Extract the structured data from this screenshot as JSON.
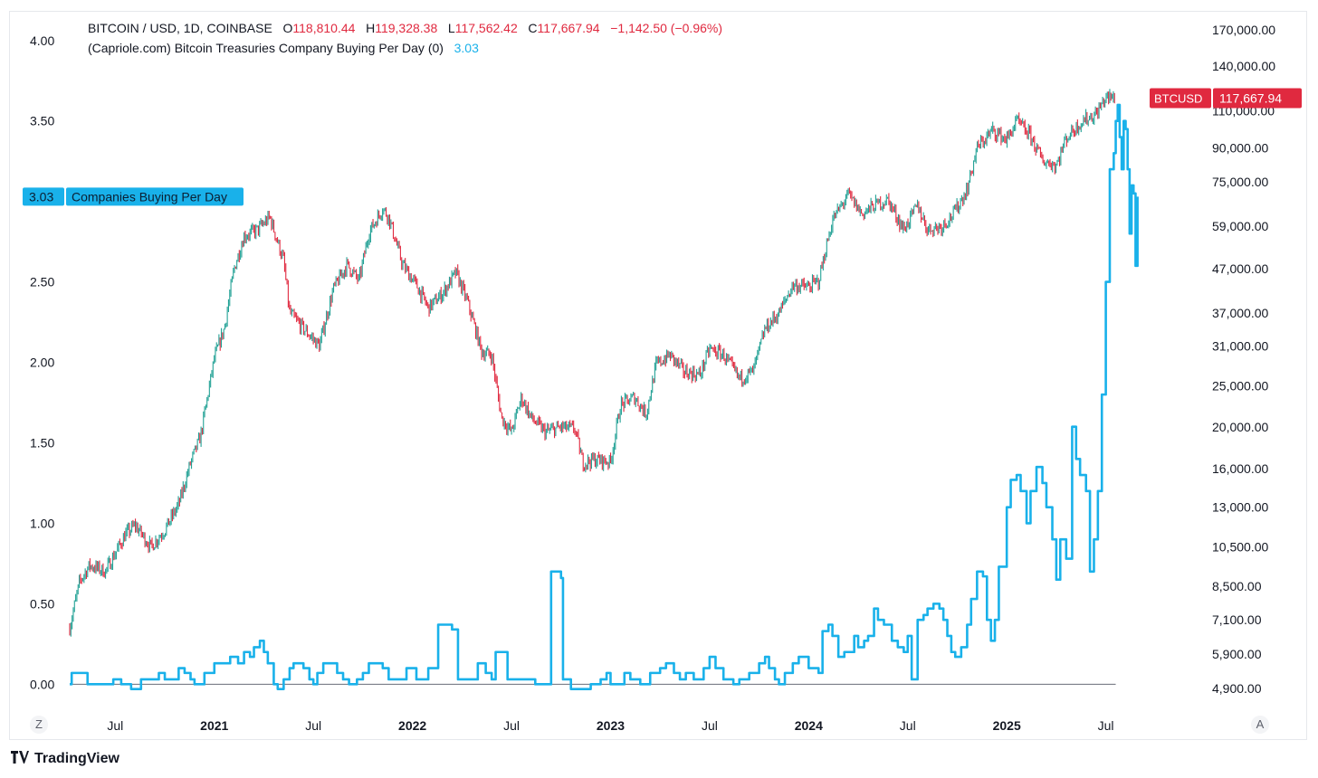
{
  "header": {
    "symbol_line": "BITCOIN / USD, 1D, COINBASE",
    "o_label": "O",
    "o_value": "118,810.44",
    "h_label": "H",
    "h_value": "119,328.38",
    "l_label": "L",
    "l_value": "117,562.42",
    "c_label": "C",
    "c_value": "117,667.94",
    "change": "−1,142.50 (−0.96%)",
    "indicator_line": "(Capriole.com) Bitcoin Treasuries Company Buying Per Day (0)",
    "indicator_value": "3.03"
  },
  "colors": {
    "price_up": "#22a195",
    "price_down": "#e0293f",
    "indicator": "#19b1ea",
    "badge_red": "#e0293f",
    "text": "#131722",
    "zero_line": "#6a6d78"
  },
  "badges": {
    "price_symbol": "BTCUSD",
    "price_value": "117,667.94",
    "indicator_value": "3.03",
    "indicator_label": "Companies Buying Per Day"
  },
  "footer": {
    "logo_text": "TradingView",
    "logo_icon": "tradingview-logo-icon",
    "left_button": "Z",
    "right_button": "A"
  },
  "chart_data": [
    {
      "type": "line",
      "name": "BTCUSD daily price",
      "title": "BITCOIN / USD, 1D, COINBASE",
      "yscale": "log",
      "ylabel": "USD",
      "ylim": [
        4400,
        175000
      ],
      "y_ticks": [
        "170,000.00",
        "140,000.00",
        "110,000.00",
        "90,000.00",
        "75,000.00",
        "59,000.00",
        "47,000.00",
        "37,000.00",
        "31,000.00",
        "25,000.00",
        "20,000.00",
        "16,000.00",
        "13,000.00",
        "10,500.00",
        "8,500.00",
        "7,100.00",
        "5,900.00",
        "4,900.00"
      ],
      "x_range": [
        2020.27,
        2025.55
      ],
      "x_ticks": [
        {
          "label": "Jul",
          "t": 2020.5,
          "bold": false
        },
        {
          "label": "2021",
          "t": 2021.0,
          "bold": true
        },
        {
          "label": "Jul",
          "t": 2021.5,
          "bold": false
        },
        {
          "label": "2022",
          "t": 2022.0,
          "bold": true
        },
        {
          "label": "Jul",
          "t": 2022.5,
          "bold": false
        },
        {
          "label": "2023",
          "t": 2023.0,
          "bold": true
        },
        {
          "label": "Jul",
          "t": 2023.5,
          "bold": false
        },
        {
          "label": "2024",
          "t": 2024.0,
          "bold": true
        },
        {
          "label": "Jul",
          "t": 2024.5,
          "bold": false
        },
        {
          "label": "2025",
          "t": 2025.0,
          "bold": true
        },
        {
          "label": "Jul",
          "t": 2025.5,
          "bold": false
        }
      ],
      "points": [
        [
          2020.27,
          6800
        ],
        [
          2020.32,
          8700
        ],
        [
          2020.37,
          9500
        ],
        [
          2020.45,
          9200
        ],
        [
          2020.55,
          11200
        ],
        [
          2020.6,
          11800
        ],
        [
          2020.68,
          10500
        ],
        [
          2020.75,
          11500
        ],
        [
          2020.82,
          13200
        ],
        [
          2020.88,
          16500
        ],
        [
          2020.93,
          19000
        ],
        [
          2021.0,
          29000
        ],
        [
          2021.05,
          34000
        ],
        [
          2021.1,
          47000
        ],
        [
          2021.15,
          56000
        ],
        [
          2021.22,
          58000
        ],
        [
          2021.28,
          62000
        ],
        [
          2021.35,
          49000
        ],
        [
          2021.38,
          37000
        ],
        [
          2021.45,
          34000
        ],
        [
          2021.53,
          31000
        ],
        [
          2021.6,
          42000
        ],
        [
          2021.67,
          48000
        ],
        [
          2021.73,
          44000
        ],
        [
          2021.78,
          57000
        ],
        [
          2021.85,
          65000
        ],
        [
          2021.88,
          62000
        ],
        [
          2021.95,
          48000
        ],
        [
          2022.02,
          43000
        ],
        [
          2022.08,
          38000
        ],
        [
          2022.15,
          41000
        ],
        [
          2022.22,
          46000
        ],
        [
          2022.28,
          39000
        ],
        [
          2022.35,
          30000
        ],
        [
          2022.4,
          29500
        ],
        [
          2022.45,
          21000
        ],
        [
          2022.5,
          19500
        ],
        [
          2022.55,
          23500
        ],
        [
          2022.6,
          21000
        ],
        [
          2022.67,
          19500
        ],
        [
          2022.75,
          20000
        ],
        [
          2022.82,
          19800
        ],
        [
          2022.86,
          16500
        ],
        [
          2022.92,
          16800
        ],
        [
          2023.0,
          16600
        ],
        [
          2023.05,
          22500
        ],
        [
          2023.12,
          23500
        ],
        [
          2023.18,
          21500
        ],
        [
          2023.23,
          28000
        ],
        [
          2023.3,
          29500
        ],
        [
          2023.37,
          27000
        ],
        [
          2023.45,
          26500
        ],
        [
          2023.5,
          30500
        ],
        [
          2023.57,
          29500
        ],
        [
          2023.65,
          26000
        ],
        [
          2023.72,
          27000
        ],
        [
          2023.78,
          34000
        ],
        [
          2023.85,
          37000
        ],
        [
          2023.92,
          43000
        ],
        [
          2024.0,
          42500
        ],
        [
          2024.05,
          44000
        ],
        [
          2024.12,
          61000
        ],
        [
          2024.2,
          70000
        ],
        [
          2024.27,
          63000
        ],
        [
          2024.33,
          66000
        ],
        [
          2024.4,
          68000
        ],
        [
          2024.48,
          58000
        ],
        [
          2024.55,
          66000
        ],
        [
          2024.6,
          58000
        ],
        [
          2024.67,
          59000
        ],
        [
          2024.73,
          63000
        ],
        [
          2024.8,
          72000
        ],
        [
          2024.85,
          90000
        ],
        [
          2024.93,
          99000
        ],
        [
          2025.0,
          94000
        ],
        [
          2025.05,
          104000
        ],
        [
          2025.12,
          96000
        ],
        [
          2025.18,
          84000
        ],
        [
          2025.25,
          82000
        ],
        [
          2025.3,
          95000
        ],
        [
          2025.38,
          104000
        ],
        [
          2025.45,
          108000
        ],
        [
          2025.5,
          118000
        ],
        [
          2025.55,
          117667.94
        ]
      ]
    },
    {
      "type": "line",
      "name": "Companies Buying Per Day",
      "title": "(Capriole.com) Bitcoin Treasuries Company Buying Per Day (0)",
      "ylim": [
        -0.15,
        4.1
      ],
      "y_ticks": [
        "4.00",
        "3.50",
        "2.50",
        "2.00",
        "1.50",
        "1.00",
        "0.50",
        "0.00"
      ],
      "last_value": 3.03,
      "points": [
        [
          2020.27,
          0.0
        ],
        [
          2020.28,
          0.07
        ],
        [
          2020.35,
          0.07
        ],
        [
          2020.36,
          0.0
        ],
        [
          2020.48,
          0.0
        ],
        [
          2020.49,
          0.03
        ],
        [
          2020.52,
          0.03
        ],
        [
          2020.53,
          0.0
        ],
        [
          2020.57,
          0.0
        ],
        [
          2020.58,
          -0.03
        ],
        [
          2020.62,
          -0.03
        ],
        [
          2020.63,
          0.03
        ],
        [
          2020.7,
          0.03
        ],
        [
          2020.72,
          0.07
        ],
        [
          2020.75,
          0.03
        ],
        [
          2020.8,
          0.03
        ],
        [
          2020.82,
          0.1
        ],
        [
          2020.85,
          0.07
        ],
        [
          2020.88,
          0.03
        ],
        [
          2020.9,
          0.0
        ],
        [
          2020.95,
          0.07
        ],
        [
          2020.98,
          0.07
        ],
        [
          2021.0,
          0.13
        ],
        [
          2021.05,
          0.13
        ],
        [
          2021.08,
          0.17
        ],
        [
          2021.12,
          0.13
        ],
        [
          2021.15,
          0.2
        ],
        [
          2021.18,
          0.17
        ],
        [
          2021.2,
          0.23
        ],
        [
          2021.23,
          0.27
        ],
        [
          2021.25,
          0.2
        ],
        [
          2021.27,
          0.13
        ],
        [
          2021.3,
          0.0
        ],
        [
          2021.32,
          -0.03
        ],
        [
          2021.35,
          0.03
        ],
        [
          2021.38,
          0.1
        ],
        [
          2021.4,
          0.13
        ],
        [
          2021.45,
          0.1
        ],
        [
          2021.48,
          0.03
        ],
        [
          2021.5,
          0.0
        ],
        [
          2021.52,
          0.07
        ],
        [
          2021.55,
          0.13
        ],
        [
          2021.6,
          0.13
        ],
        [
          2021.62,
          0.07
        ],
        [
          2021.65,
          0.03
        ],
        [
          2021.68,
          0.0
        ],
        [
          2021.72,
          0.03
        ],
        [
          2021.75,
          0.07
        ],
        [
          2021.78,
          0.13
        ],
        [
          2021.82,
          0.13
        ],
        [
          2021.85,
          0.1
        ],
        [
          2021.88,
          0.03
        ],
        [
          2021.95,
          0.03
        ],
        [
          2021.97,
          0.1
        ],
        [
          2022.0,
          0.1
        ],
        [
          2022.02,
          0.03
        ],
        [
          2022.05,
          0.03
        ],
        [
          2022.08,
          0.1
        ],
        [
          2022.12,
          0.1
        ],
        [
          2022.13,
          0.37
        ],
        [
          2022.17,
          0.37
        ],
        [
          2022.2,
          0.34
        ],
        [
          2022.22,
          0.34
        ],
        [
          2022.23,
          0.03
        ],
        [
          2022.3,
          0.03
        ],
        [
          2022.33,
          0.13
        ],
        [
          2022.37,
          0.07
        ],
        [
          2022.4,
          0.03
        ],
        [
          2022.42,
          0.2
        ],
        [
          2022.47,
          0.2
        ],
        [
          2022.48,
          0.03
        ],
        [
          2022.55,
          0.03
        ],
        [
          2022.58,
          0.03
        ],
        [
          2022.6,
          0.03
        ],
        [
          2022.62,
          0.0
        ],
        [
          2022.65,
          0.0
        ],
        [
          2022.67,
          0.0
        ],
        [
          2022.7,
          0.7
        ],
        [
          2022.74,
          0.7
        ],
        [
          2022.75,
          0.66
        ],
        [
          2022.76,
          0.03
        ],
        [
          2022.79,
          0.03
        ],
        [
          2022.8,
          -0.03
        ],
        [
          2022.85,
          -0.03
        ],
        [
          2022.9,
          0.0
        ],
        [
          2022.95,
          0.03
        ],
        [
          2022.98,
          0.07
        ],
        [
          2023.0,
          0.0
        ],
        [
          2023.05,
          0.0
        ],
        [
          2023.07,
          0.07
        ],
        [
          2023.1,
          0.03
        ],
        [
          2023.15,
          0.0
        ],
        [
          2023.2,
          0.07
        ],
        [
          2023.25,
          0.1
        ],
        [
          2023.28,
          0.13
        ],
        [
          2023.32,
          0.07
        ],
        [
          2023.35,
          0.03
        ],
        [
          2023.38,
          0.07
        ],
        [
          2023.42,
          0.03
        ],
        [
          2023.45,
          0.03
        ],
        [
          2023.47,
          0.1
        ],
        [
          2023.5,
          0.17
        ],
        [
          2023.53,
          0.1
        ],
        [
          2023.57,
          0.03
        ],
        [
          2023.6,
          0.03
        ],
        [
          2023.62,
          0.0
        ],
        [
          2023.65,
          0.03
        ],
        [
          2023.7,
          0.07
        ],
        [
          2023.75,
          0.13
        ],
        [
          2023.78,
          0.17
        ],
        [
          2023.8,
          0.1
        ],
        [
          2023.83,
          0.03
        ],
        [
          2023.85,
          0.0
        ],
        [
          2023.88,
          0.07
        ],
        [
          2023.92,
          0.13
        ],
        [
          2023.95,
          0.17
        ],
        [
          2024.0,
          0.1
        ],
        [
          2024.05,
          0.07
        ],
        [
          2024.07,
          0.33
        ],
        [
          2024.1,
          0.37
        ],
        [
          2024.12,
          0.3
        ],
        [
          2024.15,
          0.17
        ],
        [
          2024.18,
          0.2
        ],
        [
          2024.2,
          0.2
        ],
        [
          2024.23,
          0.3
        ],
        [
          2024.25,
          0.23
        ],
        [
          2024.28,
          0.27
        ],
        [
          2024.3,
          0.3
        ],
        [
          2024.33,
          0.47
        ],
        [
          2024.35,
          0.4
        ],
        [
          2024.38,
          0.37
        ],
        [
          2024.42,
          0.27
        ],
        [
          2024.45,
          0.23
        ],
        [
          2024.48,
          0.2
        ],
        [
          2024.5,
          0.3
        ],
        [
          2024.52,
          0.03
        ],
        [
          2024.55,
          0.4
        ],
        [
          2024.58,
          0.43
        ],
        [
          2024.6,
          0.47
        ],
        [
          2024.63,
          0.5
        ],
        [
          2024.66,
          0.47
        ],
        [
          2024.68,
          0.4
        ],
        [
          2024.7,
          0.3
        ],
        [
          2024.72,
          0.2
        ],
        [
          2024.74,
          0.17
        ],
        [
          2024.77,
          0.23
        ],
        [
          2024.8,
          0.37
        ],
        [
          2024.82,
          0.53
        ],
        [
          2024.85,
          0.7
        ],
        [
          2024.88,
          0.67
        ],
        [
          2024.9,
          0.4
        ],
        [
          2024.92,
          0.27
        ],
        [
          2024.94,
          0.4
        ],
        [
          2024.96,
          0.73
        ],
        [
          2024.98,
          0.73
        ],
        [
          2025.0,
          1.1
        ],
        [
          2025.02,
          1.27
        ],
        [
          2025.05,
          1.3
        ],
        [
          2025.07,
          1.2
        ],
        [
          2025.1,
          1.0
        ],
        [
          2025.12,
          1.2
        ],
        [
          2025.15,
          1.35
        ],
        [
          2025.18,
          1.25
        ],
        [
          2025.2,
          1.1
        ],
        [
          2025.23,
          0.9
        ],
        [
          2025.25,
          0.65
        ],
        [
          2025.27,
          0.9
        ],
        [
          2025.3,
          0.78
        ],
        [
          2025.33,
          1.6
        ],
        [
          2025.35,
          1.4
        ],
        [
          2025.37,
          1.3
        ],
        [
          2025.4,
          1.2
        ],
        [
          2025.42,
          0.7
        ],
        [
          2025.44,
          0.9
        ],
        [
          2025.46,
          1.2
        ],
        [
          2025.48,
          1.8
        ],
        [
          2025.5,
          2.5
        ],
        [
          2025.52,
          3.2
        ],
        [
          2025.54,
          3.3
        ],
        [
          2025.55,
          3.5
        ],
        [
          2025.56,
          3.6
        ],
        [
          2025.57,
          3.4
        ],
        [
          2025.58,
          3.2
        ],
        [
          2025.59,
          3.5
        ],
        [
          2025.6,
          3.45
        ],
        [
          2025.61,
          3.2
        ],
        [
          2025.62,
          2.8
        ],
        [
          2025.63,
          3.1
        ],
        [
          2025.64,
          3.05
        ],
        [
          2025.65,
          2.6
        ],
        [
          2025.66,
          3.03
        ]
      ]
    }
  ]
}
